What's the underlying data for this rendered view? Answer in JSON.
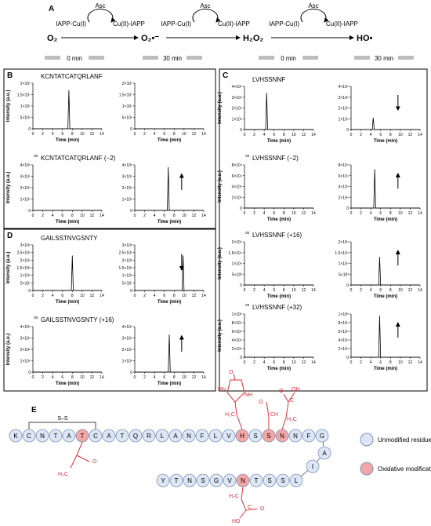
{
  "scheme": {
    "label": "A",
    "species": [
      "O₂",
      "O₂•⁻",
      "H₂O₂",
      "HO•"
    ],
    "reductant": "Asc",
    "cu1": "IAPP-Cu(I)",
    "cu2": "Cu(II)-IAPP"
  },
  "time_labels": [
    "0 min",
    "30 min"
  ],
  "axis_labels": {
    "x": "Time (min)",
    "y": "Intensity (a.u.)"
  },
  "xlim": [
    0,
    14
  ],
  "xticks": [
    0,
    2,
    4,
    6,
    8,
    10,
    12,
    14
  ],
  "panels": [
    {
      "label": "B",
      "rows": [
        {
          "name": "KCNTATCATQRLANF",
          "ylim": [
            0,
            20000000
          ],
          "yticks": [
            0,
            {
              "value": 5000000,
              "label": "5×10⁶"
            },
            {
              "value": 10000000,
              "label": "1×10⁷"
            },
            {
              "value": 15000000,
              "label": "1.5×10⁷"
            },
            {
              "value": 20000000,
              "label": "2×10⁷"
            }
          ],
          "plots": [
            {
              "x": [
                0,
                7.1,
                7.3,
                7.5,
                14
              ],
              "y": [
                0,
                0,
                17000000,
                0,
                0
              ]
            },
            {
              "x": [
                0,
                14
              ],
              "y": [
                0,
                0
              ]
            }
          ]
        },
        {
          "prefix": "ox",
          "name": "KCNTATCATQRLANF (−2)",
          "ylim": [
            0,
            400000
          ],
          "yticks": [
            0,
            {
              "value": 100000,
              "label": "1×10⁵"
            },
            {
              "value": 200000,
              "label": "2×10⁵"
            },
            {
              "value": 300000,
              "label": "3×10⁵"
            },
            {
              "value": 400000,
              "label": "4×10⁵"
            }
          ],
          "plots": [
            {
              "x": [
                0,
                14
              ],
              "y": [
                0,
                0
              ]
            },
            {
              "x": [
                0,
                6.6,
                6.8,
                7,
                14
              ],
              "y": [
                0,
                0,
                380000,
                0,
                0
              ],
              "arrow": "up"
            }
          ]
        }
      ]
    },
    {
      "label": "D",
      "rows": [
        {
          "name": "GAILSSTNVGSNTY",
          "ylim": [
            0,
            300000000
          ],
          "yticks": [
            0,
            {
              "value": 50000000,
              "label": "5×10⁷"
            },
            {
              "value": 100000000,
              "label": "1×10⁸"
            },
            {
              "value": 150000000,
              "label": "1.5×10⁸"
            },
            {
              "value": 200000000,
              "label": "2×10⁸"
            },
            {
              "value": 250000000,
              "label": "2.5×10⁸"
            },
            {
              "value": 300000000,
              "label": "3×10⁸"
            }
          ],
          "plots": [
            {
              "x": [
                0,
                7.8,
                8,
                8.2,
                14
              ],
              "y": [
                0,
                0,
                230000000,
                0,
                0
              ]
            },
            {
              "x": [
                0,
                9.6,
                9.8,
                10,
                14
              ],
              "y": [
                0,
                0,
                230000000,
                0,
                0
              ],
              "arrow": "down"
            }
          ]
        },
        {
          "prefix": "ox",
          "name": "GAILSSTNVGSNTY (+16)",
          "ylim": [
            0,
            4000000
          ],
          "yticks": [
            0,
            {
              "value": 1000000,
              "label": "1×10⁶"
            },
            {
              "value": 2000000,
              "label": "2×10⁶"
            },
            {
              "value": 3000000,
              "label": "3×10⁶"
            },
            {
              "value": 4000000,
              "label": "4×10⁶"
            }
          ],
          "plots": [
            {
              "x": [
                0,
                14
              ],
              "y": [
                0,
                0
              ]
            },
            {
              "x": [
                0,
                6.8,
                7,
                7.2,
                14
              ],
              "y": [
                0,
                0,
                3300000,
                0,
                0
              ],
              "arrow": "up"
            }
          ]
        }
      ]
    },
    {
      "label": "C",
      "rows": [
        {
          "name": "LVHSSNNF",
          "ylim": [
            0,
            4000000000
          ],
          "yticks": [
            0,
            {
              "value": 1000000000,
              "label": "1×10⁹"
            },
            {
              "value": 2000000000,
              "label": "2×10⁹"
            },
            {
              "value": 3000000000,
              "label": "3×10⁹"
            },
            {
              "value": 4000000000,
              "label": "4×10⁹"
            }
          ],
          "plots": [
            {
              "x": [
                0,
                4.3,
                4.5,
                4.7,
                14
              ],
              "y": [
                0,
                0,
                3400000000,
                0,
                0
              ]
            },
            {
              "x": [
                0,
                4.3,
                4.5,
                4.7,
                14
              ],
              "y": [
                0,
                0,
                1100000000,
                0,
                0
              ],
              "arrow": "down"
            }
          ]
        },
        {
          "prefix": "ox",
          "name": "LVHSSNNF (−2)",
          "ylim": [
            0,
            80000
          ],
          "yticks": [
            0,
            {
              "value": 20000,
              "label": "2×10⁴"
            },
            {
              "value": 40000,
              "label": "4×10⁴"
            },
            {
              "value": 60000,
              "label": "6×10⁴"
            },
            {
              "value": 80000,
              "label": "8×10⁴"
            }
          ],
          "plots": [
            {
              "x": [
                0,
                14
              ],
              "y": [
                0,
                0
              ]
            },
            {
              "x": [
                0,
                4.6,
                4.8,
                5,
                14
              ],
              "y": [
                0,
                0,
                72000,
                0,
                0
              ],
              "arrow": "up"
            }
          ]
        },
        {
          "prefix": "ox",
          "name": "LVHSSNNF (+16)",
          "ylim": [
            0,
            20000
          ],
          "yticks": [
            0,
            {
              "value": 5000,
              "label": "5×10³"
            },
            {
              "value": 10000,
              "label": "1×10⁴"
            },
            {
              "value": 15000,
              "label": "1.5×10⁴"
            },
            {
              "value": 20000,
              "label": "2×10⁴"
            }
          ],
          "plots": [
            {
              "x": [
                0,
                14
              ],
              "y": [
                0,
                0
              ]
            },
            {
              "x": [
                0,
                5.6,
                5.8,
                6,
                14
              ],
              "y": [
                0,
                0,
                13000,
                0,
                0
              ],
              "arrow": "up"
            }
          ]
        },
        {
          "prefix": "ox",
          "name": "LVHSSNNF (+32)",
          "ylim": [
            0,
            100000
          ],
          "yticks": [
            0,
            {
              "value": 20000,
              "label": "2×10⁴"
            },
            {
              "value": 40000,
              "label": "4×10⁴"
            },
            {
              "value": 60000,
              "label": "6×10⁴"
            },
            {
              "value": 80000,
              "label": "8×10⁴"
            },
            {
              "value": 100000,
              "label": "1×10⁵"
            }
          ],
          "plots": [
            {
              "x": [
                0,
                14
              ],
              "y": [
                0,
                0
              ]
            },
            {
              "x": [
                0,
                5.6,
                5.8,
                6,
                14
              ],
              "y": [
                0,
                0,
                96000,
                0,
                0
              ],
              "arrow": "up"
            }
          ]
        }
      ]
    }
  ],
  "sequence_panel": {
    "label": "E",
    "disulfide": "S–S",
    "residues": [
      {
        "letter": "K",
        "modified": false
      },
      {
        "letter": "C",
        "modified": false
      },
      {
        "letter": "N",
        "modified": false
      },
      {
        "letter": "T",
        "modified": false
      },
      {
        "letter": "A",
        "modified": false
      },
      {
        "letter": "T",
        "modified": true
      },
      {
        "letter": "C",
        "modified": false
      },
      {
        "letter": "A",
        "modified": false
      },
      {
        "letter": "T",
        "modified": false
      },
      {
        "letter": "Q",
        "modified": false
      },
      {
        "letter": "R",
        "modified": false
      },
      {
        "letter": "L",
        "modified": false
      },
      {
        "letter": "A",
        "modified": false
      },
      {
        "letter": "N",
        "modified": false
      },
      {
        "letter": "F",
        "modified": false
      },
      {
        "letter": "L",
        "modified": false
      },
      {
        "letter": "V",
        "modified": false
      },
      {
        "letter": "H",
        "modified": true
      },
      {
        "letter": "S",
        "modified": false
      },
      {
        "letter": "S",
        "modified": true
      },
      {
        "letter": "N",
        "modified": true
      },
      {
        "letter": "N",
        "modified": false
      },
      {
        "letter": "F",
        "modified": false
      },
      {
        "letter": "G",
        "modified": false
      },
      {
        "letter": "A",
        "modified": false
      },
      {
        "letter": "I",
        "modified": false
      },
      {
        "letter": "L",
        "modified": false
      },
      {
        "letter": "S",
        "modified": false
      },
      {
        "letter": "S",
        "modified": false
      },
      {
        "letter": "T",
        "modified": false
      },
      {
        "letter": "N",
        "modified": true
      },
      {
        "letter": "V",
        "modified": false
      },
      {
        "letter": "G",
        "modified": false
      },
      {
        "letter": "S",
        "modified": false
      },
      {
        "letter": "N",
        "modified": false
      },
      {
        "letter": "T",
        "modified": false
      },
      {
        "letter": "Y",
        "modified": false
      }
    ],
    "side_chain_labels": [
      "H₃C",
      "O",
      "O",
      "HN",
      "NH",
      "H₂C",
      "O",
      "CH",
      "OH",
      "O",
      "C",
      "H₂C",
      "H₂C",
      "C",
      "O",
      "HO"
    ],
    "legend": {
      "unmodified": "Unmodified residue",
      "modified": "Oxidative modification"
    },
    "colors": {
      "unmodified": "#dce6f5",
      "modified": "#f4a6a6"
    }
  }
}
